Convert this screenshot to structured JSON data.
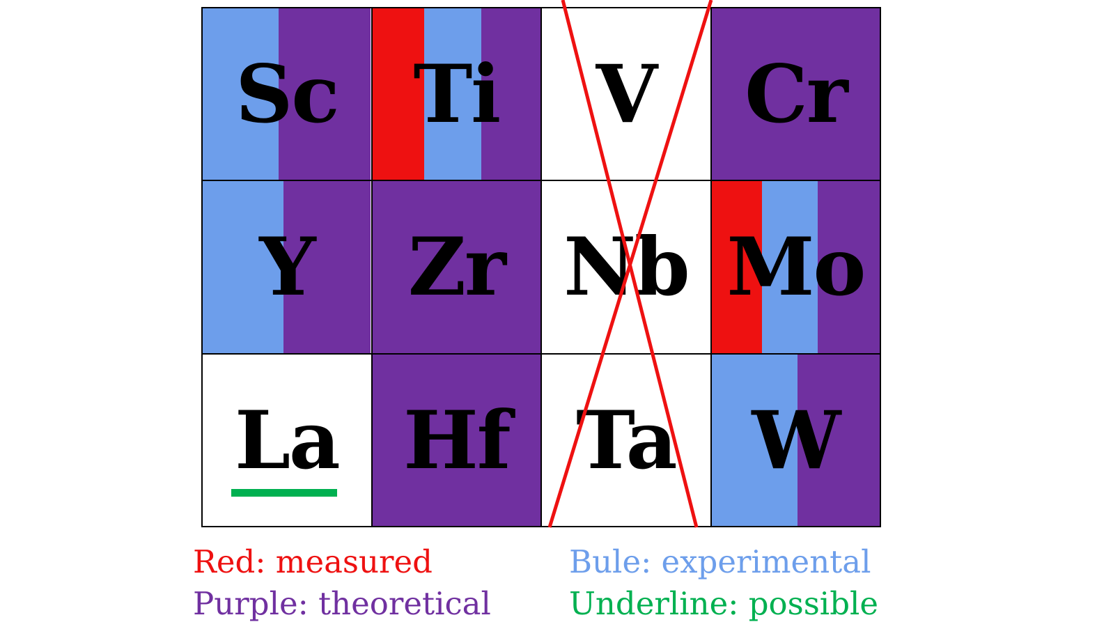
{
  "figure": {
    "description": "Periodic-table fragment of transition metals colored by study status",
    "cells": [
      {
        "symbol": "Sc",
        "stripes": [
          {
            "color": "blue",
            "pct": 45
          },
          {
            "color": "purple",
            "pct": 55
          }
        ],
        "crossed": false,
        "underlined": false
      },
      {
        "symbol": "Ti",
        "stripes": [
          {
            "color": "red",
            "pct": 31
          },
          {
            "color": "blue",
            "pct": 34
          },
          {
            "color": "purple",
            "pct": 35
          }
        ],
        "crossed": false,
        "underlined": false
      },
      {
        "symbol": "V",
        "stripes": [
          {
            "color": "white",
            "pct": 100
          }
        ],
        "crossed": true,
        "underlined": false
      },
      {
        "symbol": "Cr",
        "stripes": [
          {
            "color": "purple",
            "pct": 100
          }
        ],
        "crossed": false,
        "underlined": false
      },
      {
        "symbol": "Y",
        "stripes": [
          {
            "color": "blue",
            "pct": 48
          },
          {
            "color": "purple",
            "pct": 52
          }
        ],
        "crossed": false,
        "underlined": false
      },
      {
        "symbol": "Zr",
        "stripes": [
          {
            "color": "purple",
            "pct": 100
          }
        ],
        "crossed": false,
        "underlined": false
      },
      {
        "symbol": "Nb",
        "stripes": [
          {
            "color": "white",
            "pct": 100
          }
        ],
        "crossed": true,
        "underlined": false
      },
      {
        "symbol": "Mo",
        "stripes": [
          {
            "color": "red",
            "pct": 30
          },
          {
            "color": "blue",
            "pct": 33
          },
          {
            "color": "purple",
            "pct": 37
          }
        ],
        "crossed": false,
        "underlined": false
      },
      {
        "symbol": "La",
        "stripes": [
          {
            "color": "white",
            "pct": 100
          }
        ],
        "crossed": false,
        "underlined": true
      },
      {
        "symbol": "Hf",
        "stripes": [
          {
            "color": "purple",
            "pct": 100
          }
        ],
        "crossed": false,
        "underlined": false
      },
      {
        "symbol": "Ta",
        "stripes": [
          {
            "color": "white",
            "pct": 100
          }
        ],
        "crossed": true,
        "underlined": false
      },
      {
        "symbol": "W",
        "stripes": [
          {
            "color": "blue",
            "pct": 51
          },
          {
            "color": "purple",
            "pct": 49
          }
        ],
        "crossed": false,
        "underlined": false
      }
    ]
  },
  "cross": {
    "color": "red",
    "covers": [
      "V",
      "Nb",
      "Ta"
    ]
  },
  "legend": {
    "items": [
      {
        "text": "Red: measured",
        "color": "red"
      },
      {
        "text": "Bule: experimental",
        "color": "blue"
      },
      {
        "text": "Purple: theoretical",
        "color": "purple"
      },
      {
        "text": "Underline: possible",
        "color": "green"
      }
    ]
  },
  "colors": {
    "red": "#ee1111",
    "blue": "#6d9eeb",
    "purple": "#7030a0",
    "green": "#00b050",
    "white": "#ffffff",
    "black": "#000000"
  }
}
